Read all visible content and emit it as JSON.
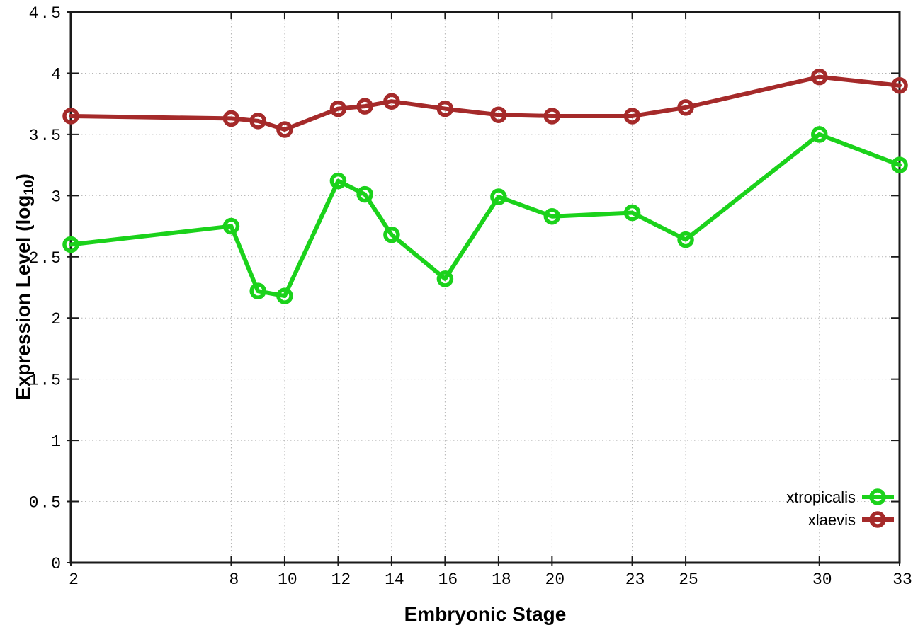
{
  "chart_data": {
    "type": "line",
    "title": "",
    "xlabel": "Embryonic Stage",
    "ylabel": "Expression Level (log10)",
    "ylabel_prefix": "Expression Level (log",
    "ylabel_sub": "10",
    "ylabel_suffix": ")",
    "x": [
      2,
      8,
      9,
      10,
      12,
      13,
      14,
      16,
      18,
      20,
      23,
      25,
      30,
      33
    ],
    "series": [
      {
        "name": "xtropicalis",
        "color": "#1bd21b",
        "values": [
          2.6,
          2.75,
          2.22,
          2.18,
          3.12,
          3.01,
          2.68,
          2.32,
          2.99,
          2.83,
          2.86,
          2.64,
          3.5,
          3.25
        ]
      },
      {
        "name": "xlaevis",
        "color": "#a52a2a",
        "values": [
          3.65,
          3.63,
          3.61,
          3.54,
          3.71,
          3.73,
          3.77,
          3.71,
          3.66,
          3.65,
          3.65,
          3.72,
          3.97,
          3.9
        ]
      }
    ],
    "xlim": [
      2,
      33
    ],
    "ylim": [
      0,
      4.5
    ],
    "x_tick_labels": [
      "2",
      "8",
      "10",
      "12",
      "14",
      "16",
      "18",
      "20",
      "23",
      "25",
      "30",
      "33"
    ],
    "x_tick_values": [
      2,
      8,
      10,
      12,
      14,
      16,
      18,
      20,
      23,
      25,
      30,
      33
    ],
    "y_tick_labels": [
      "0",
      "0.5",
      "1",
      "1.5",
      "2",
      "2.5",
      "3",
      "3.5",
      "4",
      "4.5"
    ],
    "y_tick_values": [
      0,
      0.5,
      1,
      1.5,
      2,
      2.5,
      3,
      3.5,
      4,
      4.5
    ],
    "grid": true,
    "legend_position": "inside-right-bottom",
    "legend_entries": [
      "xtropicalis",
      "xlaevis"
    ]
  },
  "style": {
    "grid_color": "#b5b5b5",
    "border_color": "#1a1a1a",
    "tick_label_color": "#000000",
    "background": "#ffffff"
  }
}
